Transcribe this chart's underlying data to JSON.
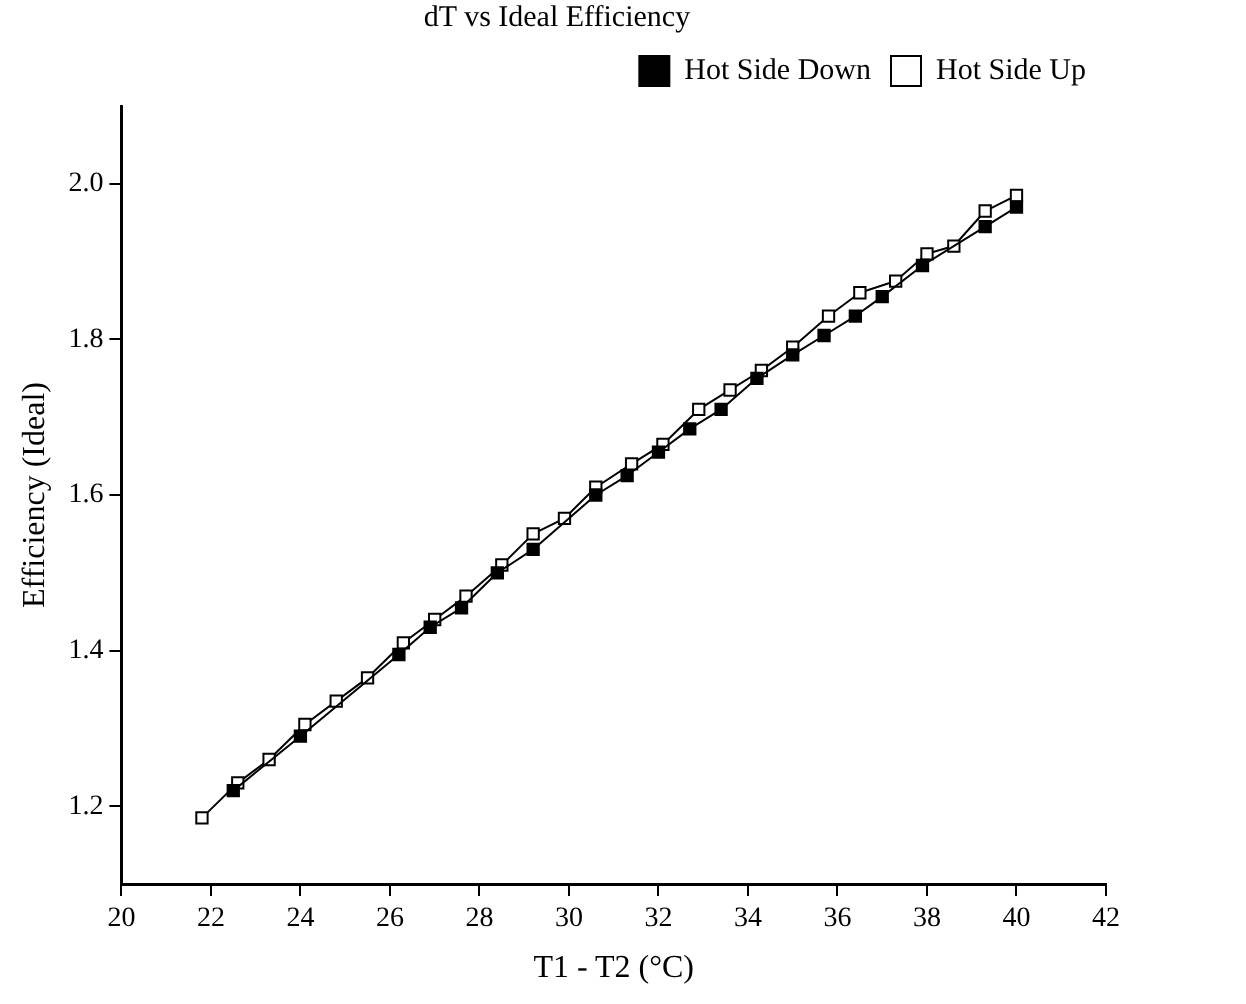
{
  "chart_data": {
    "type": "line",
    "title": "dT vs Ideal Efficiency",
    "xlabel": "T1 - T2 (°C)",
    "ylabel": "Efficiency (Ideal)",
    "xlim": [
      20,
      42
    ],
    "xticks": [
      20,
      22,
      24,
      26,
      28,
      30,
      32,
      34,
      36,
      38,
      40,
      42
    ],
    "ylim": [
      1.1,
      2.1
    ],
    "yticks": [
      1.2,
      1.4,
      1.6,
      1.8,
      {
        "value": 2.0,
        "label": "2.0"
      }
    ],
    "grid": false,
    "legend": "top right",
    "marker": "square",
    "line_style": "solid",
    "series": [
      {
        "name": "Hot Side Down",
        "color": "#000000",
        "x": [
          22.5,
          24.0,
          26.2,
          26.9,
          27.6,
          28.4,
          29.2,
          30.6,
          31.3,
          32.0,
          32.7,
          33.4,
          34.2,
          35.0,
          35.7,
          36.4,
          37.0,
          37.9,
          39.3,
          40.0
        ],
        "values": [
          1.22,
          1.29,
          1.395,
          1.43,
          1.455,
          1.5,
          1.53,
          1.6,
          1.625,
          1.655,
          1.685,
          1.71,
          1.75,
          1.78,
          1.805,
          1.83,
          1.855,
          1.895,
          1.945,
          1.97
        ]
      },
      {
        "name": "Hot Side Up",
        "color": "#ffffff",
        "x": [
          21.8,
          22.6,
          23.3,
          24.1,
          24.8,
          25.5,
          26.3,
          27.0,
          27.7,
          28.5,
          29.2,
          29.9,
          30.6,
          31.4,
          32.1,
          32.9,
          33.6,
          34.3,
          35.0,
          35.8,
          36.5,
          37.3,
          38.0,
          38.6,
          39.3,
          40.0
        ],
        "values": [
          1.185,
          1.23,
          1.26,
          1.305,
          1.335,
          1.365,
          1.41,
          1.44,
          1.47,
          1.51,
          1.55,
          1.57,
          1.61,
          1.64,
          1.665,
          1.71,
          1.735,
          1.76,
          1.79,
          1.83,
          1.86,
          1.875,
          1.91,
          1.92,
          1.965,
          1.985
        ]
      }
    ]
  }
}
